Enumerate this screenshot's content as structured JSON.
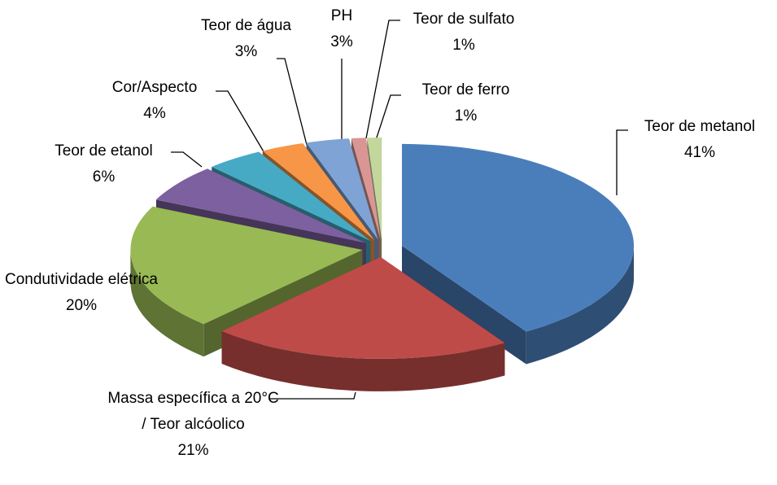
{
  "chart_data": {
    "type": "pie3d",
    "categories": [
      "Teor de metanol",
      "Massa específica a 20°C / Teor alcóolico",
      "Condutividade elétrica",
      "Teor de etanol",
      "Cor/Aspecto",
      "Teor de água",
      "PH",
      "Teor de sulfato",
      "Teor de ferro"
    ],
    "values": [
      41,
      21,
      20,
      6,
      4,
      3,
      3,
      1,
      1
    ],
    "value_labels": [
      "41%",
      "21%",
      "20%",
      "6%",
      "4%",
      "3%",
      "3%",
      "1%",
      "1%"
    ],
    "colors": [
      "#4a7ebb",
      "#be4b48",
      "#98b954",
      "#7d60a0",
      "#46aac5",
      "#f79646",
      "#7ea3d4",
      "#d99694",
      "#c3d69b"
    ]
  }
}
